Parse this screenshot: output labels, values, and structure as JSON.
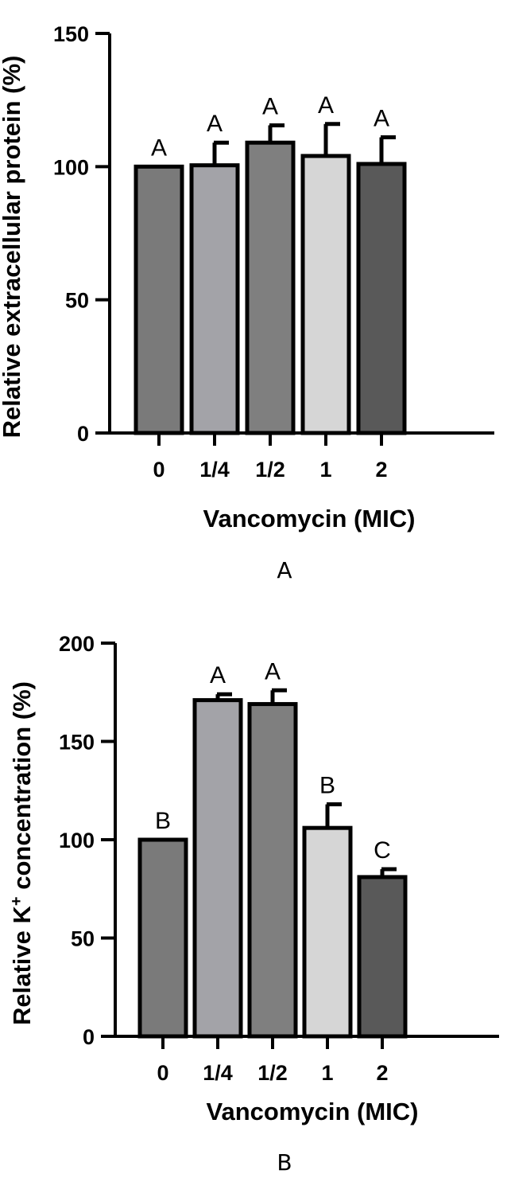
{
  "chart_data": [
    {
      "type": "bar",
      "panel_label": "A",
      "categories": [
        "0",
        "1/4",
        "1/2",
        "1",
        "2"
      ],
      "values": [
        100,
        100.5,
        109,
        104,
        101
      ],
      "errors": [
        0,
        8.5,
        6.5,
        12,
        10
      ],
      "significance": [
        "A",
        "A",
        "A",
        "A",
        "A"
      ],
      "bar_colors": [
        "#7a7a7a",
        "#a3a3a8",
        "#7f7f7f",
        "#d6d6d6",
        "#595959"
      ],
      "ylabel": "Relative extracellular protein (%)",
      "xlabel": "Vancomycin (MIC)",
      "ylim": [
        0,
        150
      ],
      "yticks": [
        "0",
        "50",
        "100",
        "150"
      ],
      "grid": false
    },
    {
      "type": "bar",
      "panel_label": "B",
      "categories": [
        "0",
        "1/4",
        "1/2",
        "1",
        "2"
      ],
      "values": [
        100,
        171,
        169,
        106,
        81
      ],
      "errors": [
        0,
        3,
        7,
        12,
        4
      ],
      "significance": [
        "B",
        "A",
        "A",
        "B",
        "C"
      ],
      "bar_colors": [
        "#7a7a7a",
        "#a3a3a8",
        "#7f7f7f",
        "#d6d6d6",
        "#595959"
      ],
      "ylabel_parts": [
        "Relative K",
        "+",
        " concentration (%)"
      ],
      "xlabel": "Vancomycin (MIC)",
      "ylim": [
        0,
        200
      ],
      "yticks": [
        "0",
        "50",
        "100",
        "150",
        "200"
      ],
      "grid": false
    }
  ]
}
